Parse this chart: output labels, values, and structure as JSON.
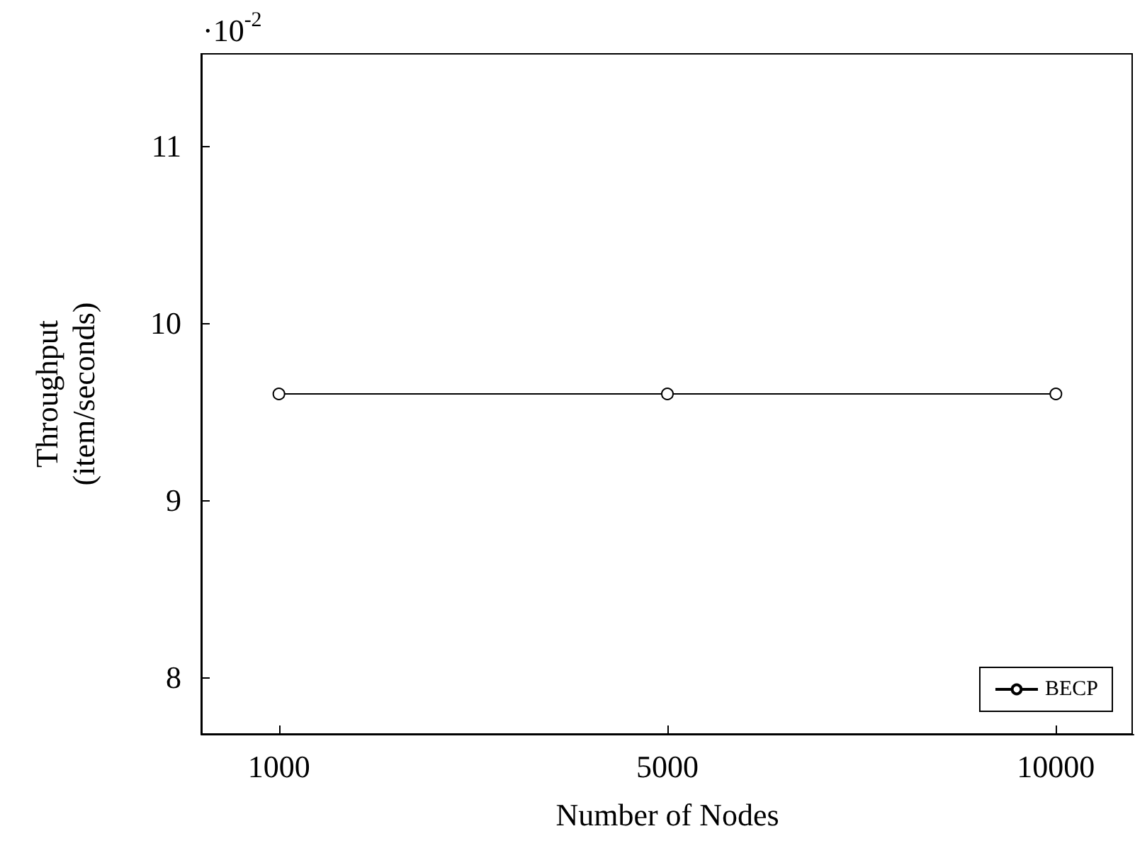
{
  "chart_data": {
    "type": "line",
    "xlabel": "Number of Nodes",
    "ylabel": "Throughput (item/seconds)",
    "annotations": [
      "·10$^{-2}$"
    ],
    "categories": [
      "1000",
      "5000",
      "10000"
    ],
    "series": [
      {
        "name": "BECP",
        "color": "#000000",
        "values": [
          9.6,
          9.6,
          9.6
        ]
      }
    ],
    "ylim": [
      7.68,
      11.52
    ],
    "yticks": [
      8,
      9,
      10,
      11
    ],
    "grid": false,
    "legend": "bottom right",
    "marker": "circle",
    "line_style": "solid"
  }
}
